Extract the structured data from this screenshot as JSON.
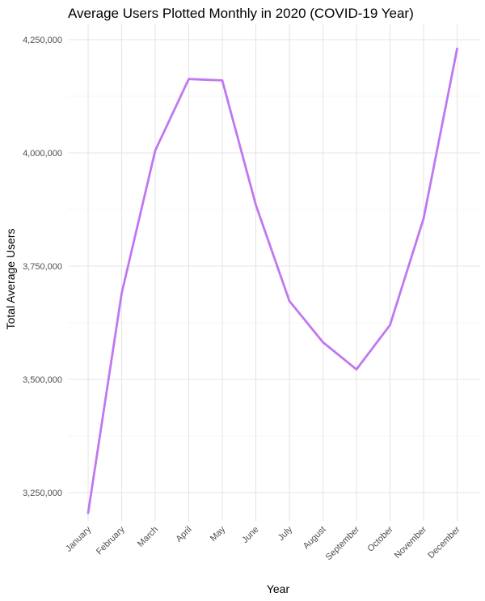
{
  "chart_data": {
    "type": "line",
    "title": "Average Users Plotted Monthly in 2020 (COVID-19 Year)",
    "xlabel": "Year",
    "ylabel": "Total Average Users",
    "categories": [
      "January",
      "February",
      "March",
      "April",
      "May",
      "June",
      "July",
      "August",
      "September",
      "October",
      "November",
      "December"
    ],
    "series": [
      {
        "values": [
          3205000,
          3690000,
          4005000,
          4163000,
          4160000,
          3885000,
          3673000,
          3582000,
          3522000,
          3620000,
          3855000,
          4230000
        ],
        "color": "#c077f0"
      }
    ],
    "ylim": [
      3180000,
      4265000
    ],
    "yticks": [
      3250000,
      3500000,
      3750000,
      4000000,
      4250000
    ],
    "ytick_labels": [
      "3,250,000",
      "3,500,000",
      "3,750,000",
      "4,000,000",
      "4,250,000"
    ],
    "grid": true,
    "legend": "none"
  }
}
